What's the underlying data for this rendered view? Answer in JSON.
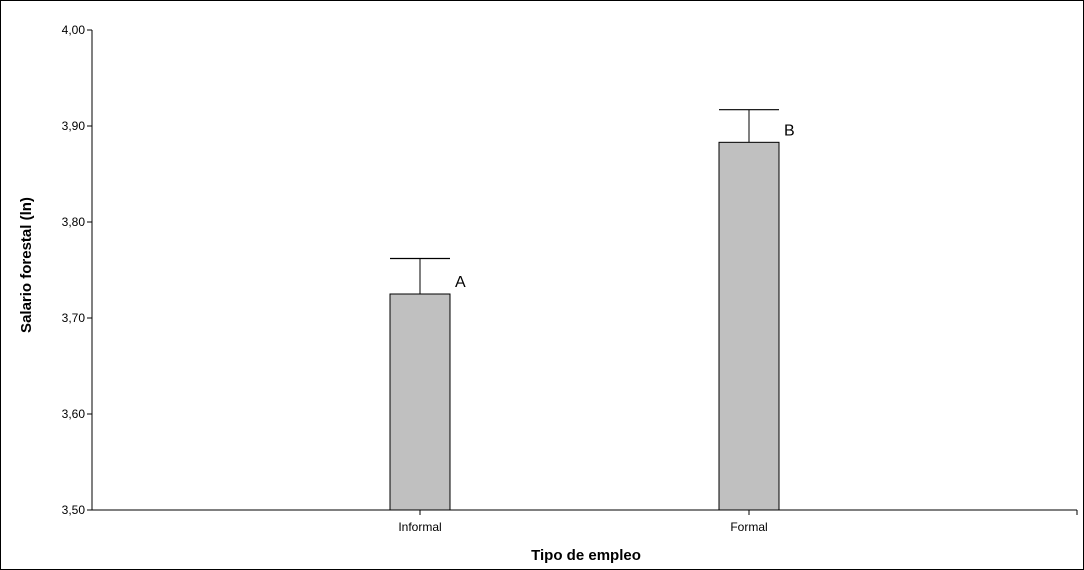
{
  "chart_data": {
    "type": "bar",
    "categories": [
      "Informal",
      "Formal"
    ],
    "values": [
      3.725,
      3.883
    ],
    "error_upper": [
      3.762,
      3.917
    ],
    "group_letters": [
      "A",
      "B"
    ],
    "xlabel": "Tipo de empleo",
    "ylabel": "Salario forestal (ln)",
    "ylim": [
      3.5,
      4.0
    ],
    "yticks": [
      "3,50",
      "3,60",
      "3,70",
      "3,80",
      "3,90",
      "4,00"
    ],
    "grid": false,
    "bar_color": "#c0c0c0"
  }
}
